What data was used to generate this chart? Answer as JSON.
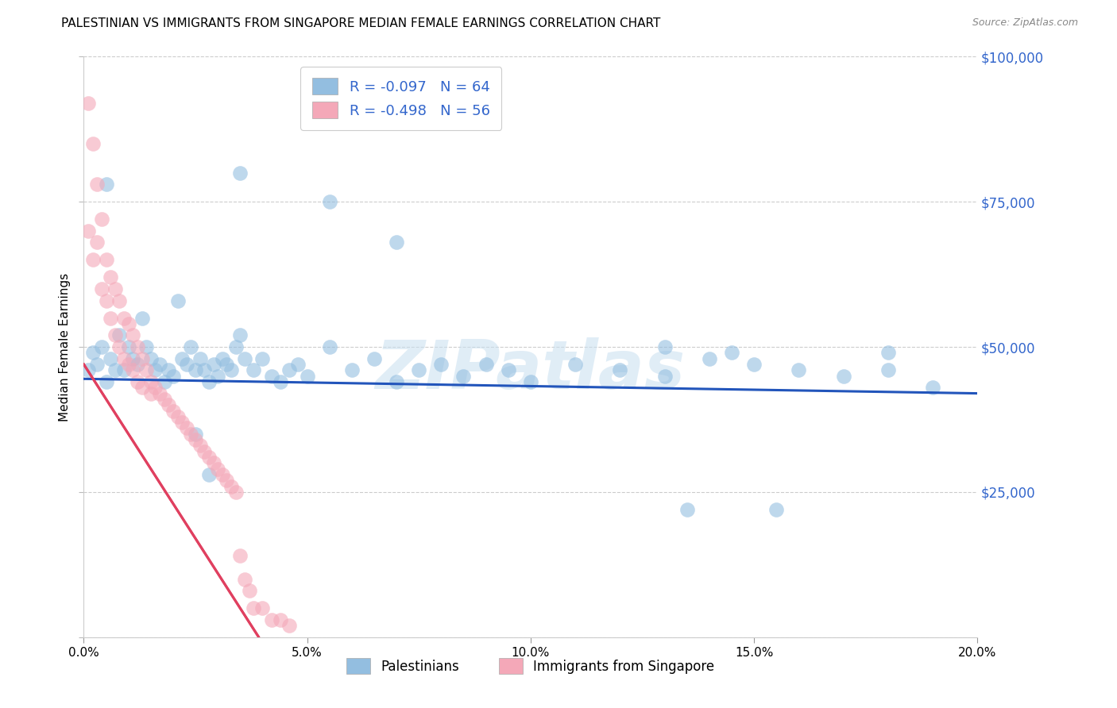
{
  "title": "PALESTINIAN VS IMMIGRANTS FROM SINGAPORE MEDIAN FEMALE EARNINGS CORRELATION CHART",
  "source": "Source: ZipAtlas.com",
  "ylabel": "Median Female Earnings",
  "xlim": [
    0.0,
    0.2
  ],
  "ylim": [
    0,
    100000
  ],
  "yticks": [
    0,
    25000,
    50000,
    75000,
    100000
  ],
  "ytick_labels": [
    "",
    "$25,000",
    "$50,000",
    "$75,000",
    "$100,000"
  ],
  "xticks": [
    0.0,
    0.05,
    0.1,
    0.15,
    0.2
  ],
  "xtick_labels": [
    "0.0%",
    "5.0%",
    "10.0%",
    "15.0%",
    "20.0%"
  ],
  "blue_color": "#93BEE0",
  "pink_color": "#F4A8B8",
  "trend_blue_color": "#2255BB",
  "trend_pink_color": "#E04060",
  "blue_R": -0.097,
  "blue_N": 64,
  "pink_R": -0.498,
  "pink_N": 56,
  "legend_label_blue": "Palestinians",
  "legend_label_pink": "Immigrants from Singapore",
  "legend_text_color": "#3366CC",
  "watermark": "ZIPatlas",
  "blue_scatter_x": [
    0.001,
    0.002,
    0.003,
    0.004,
    0.005,
    0.006,
    0.007,
    0.008,
    0.009,
    0.01,
    0.011,
    0.012,
    0.013,
    0.014,
    0.015,
    0.016,
    0.017,
    0.018,
    0.019,
    0.02,
    0.021,
    0.022,
    0.023,
    0.024,
    0.025,
    0.026,
    0.027,
    0.028,
    0.029,
    0.03,
    0.031,
    0.032,
    0.033,
    0.034,
    0.035,
    0.036,
    0.038,
    0.04,
    0.042,
    0.044,
    0.046,
    0.048,
    0.05,
    0.055,
    0.06,
    0.065,
    0.07,
    0.075,
    0.08,
    0.085,
    0.09,
    0.095,
    0.1,
    0.11,
    0.12,
    0.13,
    0.14,
    0.15,
    0.16,
    0.17,
    0.18,
    0.19,
    0.13,
    0.155
  ],
  "blue_scatter_y": [
    46000,
    49000,
    47000,
    50000,
    44000,
    48000,
    46000,
    52000,
    46000,
    50000,
    48000,
    47000,
    55000,
    50000,
    48000,
    46000,
    47000,
    44000,
    46000,
    45000,
    58000,
    48000,
    47000,
    50000,
    46000,
    48000,
    46000,
    44000,
    47000,
    45000,
    48000,
    47000,
    46000,
    50000,
    52000,
    48000,
    46000,
    48000,
    45000,
    44000,
    46000,
    47000,
    45000,
    50000,
    46000,
    48000,
    44000,
    46000,
    47000,
    45000,
    47000,
    46000,
    44000,
    47000,
    46000,
    45000,
    48000,
    47000,
    46000,
    45000,
    46000,
    43000,
    50000,
    22000
  ],
  "blue_scatter_extra": [
    [
      0.005,
      78000
    ],
    [
      0.035,
      80000
    ],
    [
      0.055,
      75000
    ],
    [
      0.07,
      68000
    ],
    [
      0.145,
      49000
    ],
    [
      0.18,
      49000
    ],
    [
      0.135,
      22000
    ],
    [
      0.025,
      35000
    ],
    [
      0.028,
      28000
    ]
  ],
  "pink_scatter_x": [
    0.001,
    0.001,
    0.002,
    0.002,
    0.003,
    0.003,
    0.004,
    0.004,
    0.005,
    0.005,
    0.006,
    0.006,
    0.007,
    0.007,
    0.008,
    0.008,
    0.009,
    0.009,
    0.01,
    0.01,
    0.011,
    0.011,
    0.012,
    0.012,
    0.013,
    0.013,
    0.014,
    0.015,
    0.015,
    0.016,
    0.017,
    0.018,
    0.019,
    0.02,
    0.021,
    0.022,
    0.023,
    0.024,
    0.025,
    0.026,
    0.027,
    0.028,
    0.029,
    0.03,
    0.031,
    0.032,
    0.033,
    0.034,
    0.035,
    0.036,
    0.037,
    0.038,
    0.04,
    0.042,
    0.044,
    0.046
  ],
  "pink_scatter_y": [
    92000,
    70000,
    85000,
    65000,
    78000,
    68000,
    72000,
    60000,
    65000,
    58000,
    62000,
    55000,
    60000,
    52000,
    58000,
    50000,
    55000,
    48000,
    54000,
    47000,
    52000,
    46000,
    50000,
    44000,
    48000,
    43000,
    46000,
    44000,
    42000,
    43000,
    42000,
    41000,
    40000,
    39000,
    38000,
    37000,
    36000,
    35000,
    34000,
    33000,
    32000,
    31000,
    30000,
    29000,
    28000,
    27000,
    26000,
    25000,
    14000,
    10000,
    8000,
    5000,
    5000,
    3000,
    3000,
    2000
  ]
}
